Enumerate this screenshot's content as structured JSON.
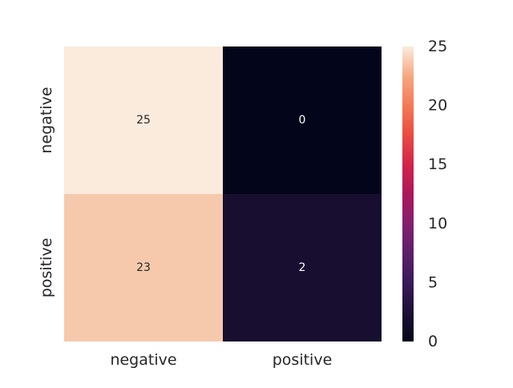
{
  "chart_data": {
    "type": "heatmap",
    "title": "",
    "xlabel": "",
    "ylabel": "",
    "x_categories": [
      "negative",
      "positive"
    ],
    "y_categories": [
      "negative",
      "positive"
    ],
    "values": [
      [
        25,
        0
      ],
      [
        23,
        2
      ]
    ],
    "annotations": [
      [
        "25",
        "0"
      ],
      [
        "23",
        "2"
      ]
    ],
    "colorbar": {
      "range": [
        0,
        25
      ],
      "ticks": [
        "0",
        "5",
        "10",
        "15",
        "20",
        "25"
      ],
      "colormap": "rocket"
    },
    "grid": false
  }
}
